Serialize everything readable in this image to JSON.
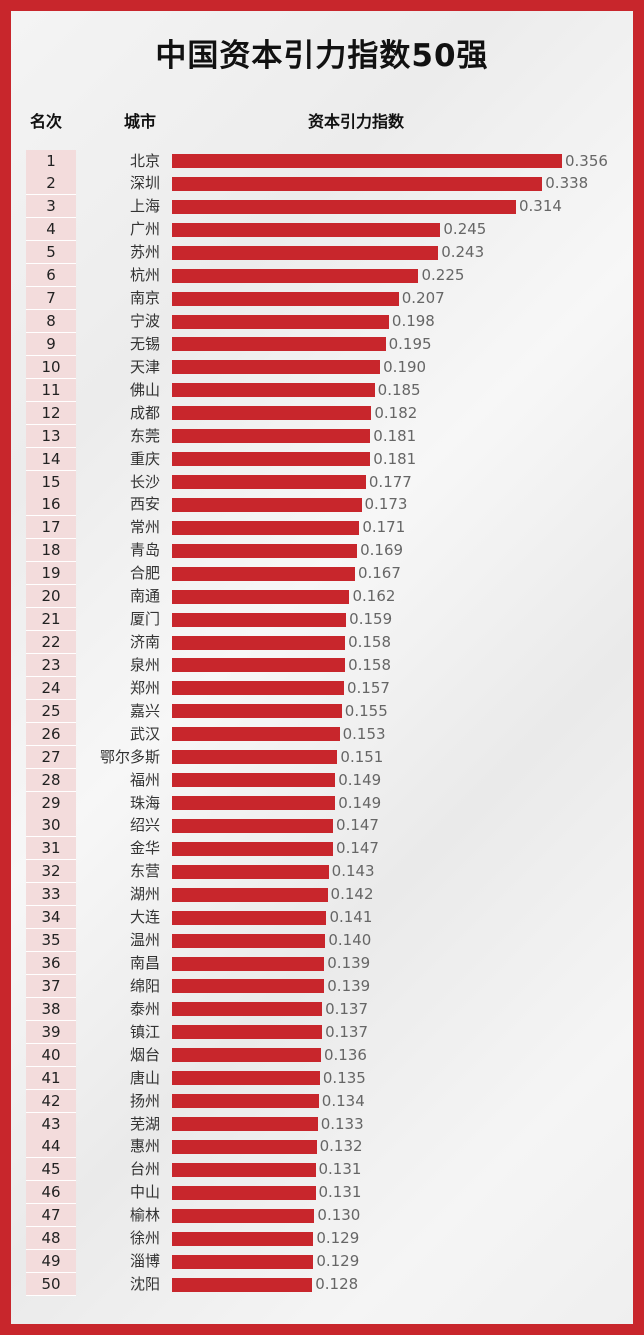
{
  "header": {
    "title": "中国资本引力指数50强",
    "col_rank": "名次",
    "col_city": "城市",
    "col_index": "资本引力指数"
  },
  "colors": {
    "bar": "#c8262c",
    "border": "#c8262c",
    "rank_bg": "#f3dcdc"
  },
  "chart_data": {
    "type": "bar",
    "orientation": "horizontal",
    "title": "中国资本引力指数50强",
    "ranks": [
      1,
      2,
      3,
      4,
      5,
      6,
      7,
      8,
      9,
      10,
      11,
      12,
      13,
      14,
      15,
      16,
      17,
      18,
      19,
      20,
      21,
      22,
      23,
      24,
      25,
      26,
      27,
      28,
      29,
      30,
      31,
      32,
      33,
      34,
      35,
      36,
      37,
      38,
      39,
      40,
      41,
      42,
      43,
      44,
      45,
      46,
      47,
      48,
      49,
      50
    ],
    "categories": [
      "北京",
      "深圳",
      "上海",
      "广州",
      "苏州",
      "杭州",
      "南京",
      "宁波",
      "无锡",
      "天津",
      "佛山",
      "成都",
      "东莞",
      "重庆",
      "长沙",
      "西安",
      "常州",
      "青岛",
      "合肥",
      "南通",
      "厦门",
      "济南",
      "泉州",
      "郑州",
      "嘉兴",
      "武汉",
      "鄂尔多斯",
      "福州",
      "珠海",
      "绍兴",
      "金华",
      "东营",
      "湖州",
      "大连",
      "温州",
      "南昌",
      "绵阳",
      "泰州",
      "镇江",
      "烟台",
      "唐山",
      "扬州",
      "芜湖",
      "惠州",
      "台州",
      "中山",
      "榆林",
      "徐州",
      "淄博",
      "沈阳"
    ],
    "values": [
      "0.356",
      "0.338",
      "0.314",
      "0.245",
      "0.243",
      "0.225",
      "0.207",
      "0.198",
      "0.195",
      "0.190",
      "0.185",
      "0.182",
      "0.181",
      "0.181",
      "0.177",
      "0.173",
      "0.171",
      "0.169",
      "0.167",
      "0.162",
      "0.159",
      "0.158",
      "0.158",
      "0.157",
      "0.155",
      "0.153",
      "0.151",
      "0.149",
      "0.149",
      "0.147",
      "0.147",
      "0.143",
      "0.142",
      "0.141",
      "0.140",
      "0.139",
      "0.139",
      "0.137",
      "0.137",
      "0.136",
      "0.135",
      "0.134",
      "0.133",
      "0.132",
      "0.131",
      "0.131",
      "0.130",
      "0.129",
      "0.129",
      "0.128"
    ]
  }
}
